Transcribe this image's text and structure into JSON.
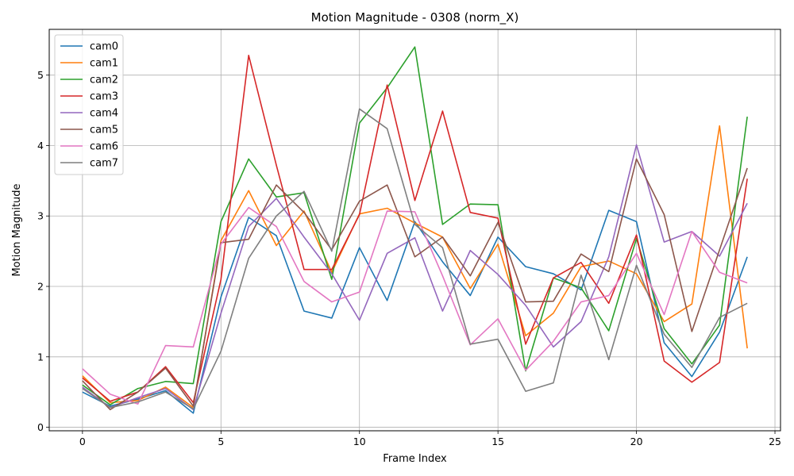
{
  "chart_data": {
    "type": "line",
    "title": "Motion Magnitude - 0308 (norm_X)",
    "xlabel": "Frame Index",
    "ylabel": "Motion Magnitude",
    "xlim": [
      -1.2,
      25.2
    ],
    "ylim": [
      -0.05,
      5.65
    ],
    "xticks": [
      0,
      5,
      10,
      15,
      20,
      25
    ],
    "yticks": [
      0,
      1,
      2,
      3,
      4,
      5
    ],
    "grid": true,
    "legend_position": "top-left",
    "x": [
      0,
      1,
      2,
      3,
      4,
      5,
      6,
      7,
      8,
      9,
      10,
      11,
      12,
      13,
      14,
      15,
      16,
      17,
      18,
      19,
      20,
      21,
      22,
      23,
      24
    ],
    "series": [
      {
        "name": "cam0",
        "color": "#1f77b4",
        "values": [
          0.5,
          0.3,
          0.4,
          0.52,
          0.2,
          1.85,
          2.98,
          2.72,
          1.65,
          1.55,
          2.55,
          1.8,
          2.92,
          2.35,
          1.87,
          2.7,
          2.28,
          2.18,
          1.95,
          3.08,
          2.92,
          1.2,
          0.72,
          1.35,
          2.42
        ]
      },
      {
        "name": "cam1",
        "color": "#ff7f0e",
        "values": [
          0.73,
          0.35,
          0.38,
          0.57,
          0.28,
          2.65,
          3.36,
          2.58,
          3.07,
          2.2,
          3.03,
          3.11,
          2.9,
          2.7,
          1.97,
          2.6,
          1.3,
          1.62,
          2.28,
          2.36,
          2.18,
          1.5,
          1.75,
          4.28,
          1.12
        ]
      },
      {
        "name": "cam2",
        "color": "#2ca02c",
        "values": [
          0.6,
          0.32,
          0.55,
          0.65,
          0.62,
          2.92,
          3.81,
          3.27,
          3.33,
          2.1,
          4.32,
          4.82,
          5.4,
          2.88,
          3.17,
          3.16,
          0.8,
          2.12,
          1.98,
          1.37,
          2.68,
          1.4,
          0.9,
          1.45,
          4.41
        ]
      },
      {
        "name": "cam3",
        "color": "#d62728",
        "values": [
          0.7,
          0.37,
          0.5,
          0.86,
          0.35,
          2.1,
          5.28,
          3.72,
          2.24,
          2.24,
          3.02,
          4.86,
          3.22,
          4.49,
          3.05,
          2.97,
          1.18,
          2.12,
          2.34,
          1.76,
          2.73,
          0.94,
          0.64,
          0.92,
          3.53
        ]
      },
      {
        "name": "cam4",
        "color": "#9467bd",
        "values": [
          0.57,
          0.28,
          0.42,
          0.55,
          0.25,
          1.62,
          2.85,
          3.25,
          2.7,
          2.18,
          1.52,
          2.47,
          2.69,
          1.65,
          2.51,
          2.17,
          1.73,
          1.14,
          1.5,
          2.42,
          4.01,
          2.63,
          2.78,
          2.43,
          3.18
        ]
      },
      {
        "name": "cam5",
        "color": "#8c564b",
        "values": [
          0.66,
          0.25,
          0.5,
          0.84,
          0.3,
          2.62,
          2.67,
          3.44,
          3.05,
          2.52,
          3.21,
          3.44,
          2.42,
          2.7,
          2.15,
          2.91,
          1.78,
          1.79,
          2.46,
          2.21,
          3.81,
          3.02,
          1.36,
          2.52,
          3.68
        ]
      },
      {
        "name": "cam6",
        "color": "#e377c2",
        "values": [
          0.83,
          0.47,
          0.33,
          1.16,
          1.14,
          2.6,
          3.12,
          2.85,
          2.07,
          1.78,
          1.92,
          3.07,
          3.06,
          2.15,
          1.17,
          1.54,
          0.81,
          1.22,
          1.78,
          1.87,
          2.47,
          1.6,
          2.78,
          2.2,
          2.05
        ]
      },
      {
        "name": "cam7",
        "color": "#7f7f7f",
        "values": [
          0.55,
          0.28,
          0.36,
          0.5,
          0.26,
          1.08,
          2.4,
          3.0,
          3.35,
          2.5,
          4.52,
          4.24,
          2.88,
          2.55,
          1.18,
          1.25,
          0.51,
          0.63,
          2.16,
          0.96,
          2.3,
          1.32,
          0.85,
          1.56,
          1.76
        ]
      }
    ]
  }
}
